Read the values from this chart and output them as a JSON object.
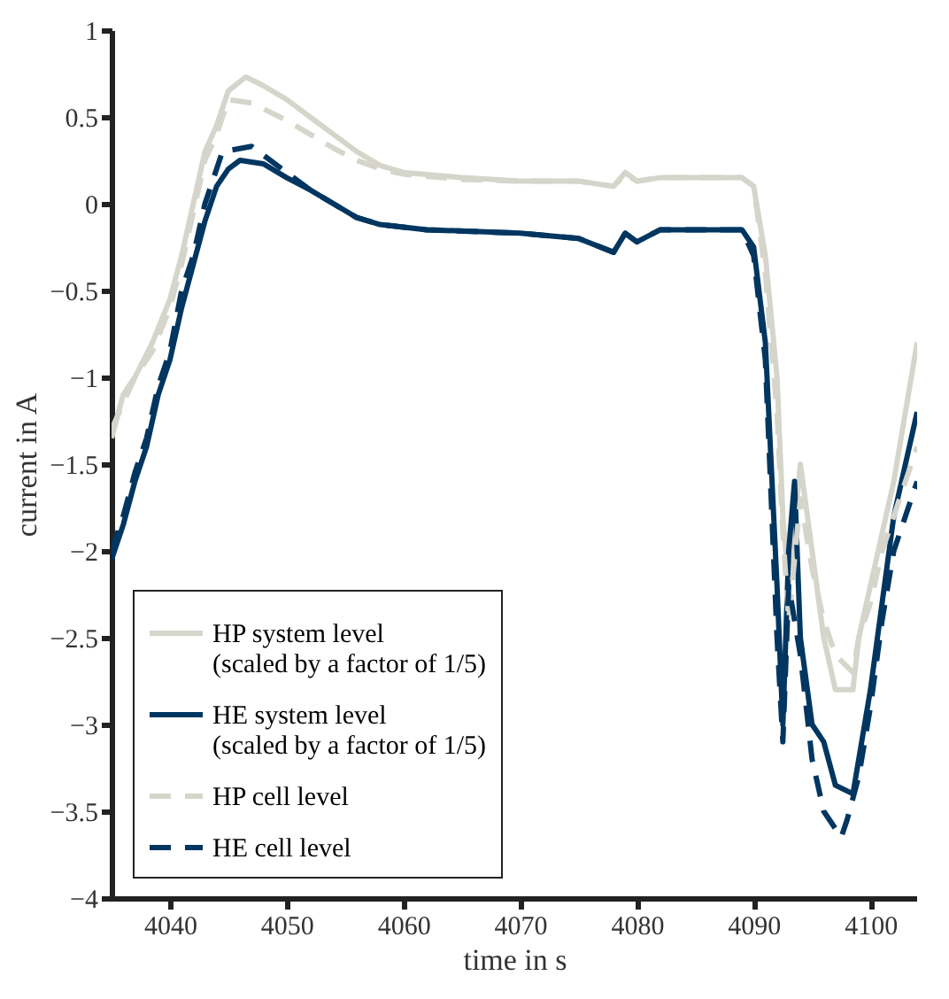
{
  "chart_data": {
    "type": "line",
    "xlabel": "time in s",
    "ylabel": "current in A",
    "xlim": [
      4035,
      4104
    ],
    "ylim": [
      -4,
      1
    ],
    "xticks": [
      4040,
      4050,
      4060,
      4070,
      4080,
      4090,
      4100
    ],
    "yticks": [
      -4,
      -3.5,
      -3,
      -2.5,
      -2,
      -1.5,
      -1,
      -0.5,
      0,
      0.5,
      1
    ],
    "grid": false,
    "legend": "bottom left",
    "series": [
      {
        "name": "HP system level\n(scaled by a factor of 1/5)",
        "color": "#d6d5cb",
        "line_style": "solid",
        "x": [
          4035,
          4036,
          4037,
          4038.5,
          4040,
          4041,
          4042,
          4043,
          4044,
          4045,
          4046.5,
          4048,
          4050,
          4052,
          4054,
          4056,
          4058,
          4060,
          4065,
          4070,
          4075,
          4078,
          4079,
          4080,
          4082,
          4089,
          4090,
          4091,
          4092,
          4092.5,
          4093,
          4094,
          4095,
          4096,
          4097,
          4098.5,
          4099,
          4100,
          4101,
          4102,
          4103,
          4104
        ],
        "values": [
          -1.35,
          -1.1,
          -1.0,
          -0.8,
          -0.55,
          -0.3,
          0.0,
          0.3,
          0.45,
          0.65,
          0.73,
          0.68,
          0.6,
          0.5,
          0.4,
          0.3,
          0.22,
          0.18,
          0.15,
          0.13,
          0.13,
          0.1,
          0.18,
          0.13,
          0.15,
          0.15,
          0.1,
          -0.3,
          -1.0,
          -1.8,
          -2.2,
          -1.5,
          -2.0,
          -2.5,
          -2.8,
          -2.8,
          -2.5,
          -2.2,
          -1.9,
          -1.6,
          -1.2,
          -0.8
        ]
      },
      {
        "name": "HE system level\n(scaled by a factor of 1/5)",
        "color": "#003660",
        "line_style": "solid",
        "x": [
          4035,
          4036,
          4037,
          4038,
          4039,
          4040,
          4041,
          4042,
          4043,
          4044,
          4045,
          4046,
          4048,
          4050,
          4052,
          4054,
          4056,
          4058,
          4062,
          4070,
          4075,
          4078,
          4079,
          4080,
          4082,
          4089,
          4090,
          4091,
          4091.5,
          4092,
          4092.5,
          4093,
          4093.5,
          4094,
          4095,
          4096,
          4097,
          4098.5,
          4099,
          4100,
          4101,
          4102,
          4103,
          4104
        ],
        "values": [
          -2.05,
          -1.85,
          -1.6,
          -1.4,
          -1.1,
          -0.9,
          -0.6,
          -0.35,
          -0.1,
          0.1,
          0.2,
          0.25,
          0.23,
          0.15,
          0.08,
          0.0,
          -0.08,
          -0.12,
          -0.15,
          -0.17,
          -0.2,
          -0.28,
          -0.17,
          -0.22,
          -0.15,
          -0.15,
          -0.25,
          -0.8,
          -1.5,
          -2.2,
          -3.0,
          -2.0,
          -1.6,
          -2.5,
          -3.0,
          -3.1,
          -3.35,
          -3.4,
          -3.2,
          -2.8,
          -2.3,
          -1.8,
          -1.5,
          -1.2
        ]
      },
      {
        "name": "HP cell level",
        "color": "#d6d5cb",
        "line_style": "dashed",
        "x": [
          4035,
          4036,
          4037,
          4038.5,
          4040,
          4041,
          4042,
          4043,
          4044,
          4045,
          4047,
          4050,
          4052,
          4054,
          4056,
          4058,
          4060,
          4065,
          4070,
          4075,
          4078,
          4079,
          4080,
          4082,
          4089,
          4090,
          4091,
          4092,
          4092.5,
          4093,
          4094,
          4095,
          4096,
          4097,
          4098.5,
          4099,
          4100,
          4101,
          4102,
          4103,
          4104
        ],
        "values": [
          -1.3,
          -1.15,
          -1.0,
          -0.85,
          -0.6,
          -0.35,
          -0.05,
          0.25,
          0.4,
          0.6,
          0.58,
          0.48,
          0.4,
          0.32,
          0.25,
          0.2,
          0.17,
          0.14,
          0.13,
          0.13,
          0.1,
          0.17,
          0.13,
          0.15,
          0.15,
          0.1,
          -0.4,
          -1.2,
          -1.9,
          -2.4,
          -1.7,
          -2.1,
          -2.4,
          -2.6,
          -2.7,
          -2.5,
          -2.3,
          -2.0,
          -1.8,
          -1.6,
          -1.4
        ]
      },
      {
        "name": "HE cell level",
        "color": "#003660",
        "line_style": "dashed",
        "x": [
          4035,
          4036,
          4037,
          4038,
          4039,
          4040,
          4041,
          4042,
          4043,
          4044,
          4044.5,
          4047,
          4050,
          4052,
          4054,
          4056,
          4058,
          4062,
          4070,
          4075,
          4078,
          4079,
          4080,
          4082,
          4089,
          4090,
          4091,
          4091.5,
          4092,
          4092.5,
          4093,
          4094,
          4095,
          4096,
          4097,
          4097.5,
          4098,
          4099,
          4100,
          4101,
          4102,
          4103,
          4104
        ],
        "values": [
          -2.0,
          -1.8,
          -1.55,
          -1.35,
          -1.05,
          -0.85,
          -0.5,
          -0.3,
          0.0,
          0.2,
          0.3,
          0.33,
          0.18,
          0.08,
          0.0,
          -0.08,
          -0.12,
          -0.15,
          -0.17,
          -0.2,
          -0.28,
          -0.17,
          -0.22,
          -0.15,
          -0.15,
          -0.3,
          -0.9,
          -1.7,
          -2.5,
          -3.1,
          -2.2,
          -2.6,
          -3.2,
          -3.5,
          -3.6,
          -3.65,
          -3.55,
          -3.3,
          -2.9,
          -2.4,
          -2.0,
          -1.8,
          -1.6
        ]
      }
    ]
  }
}
